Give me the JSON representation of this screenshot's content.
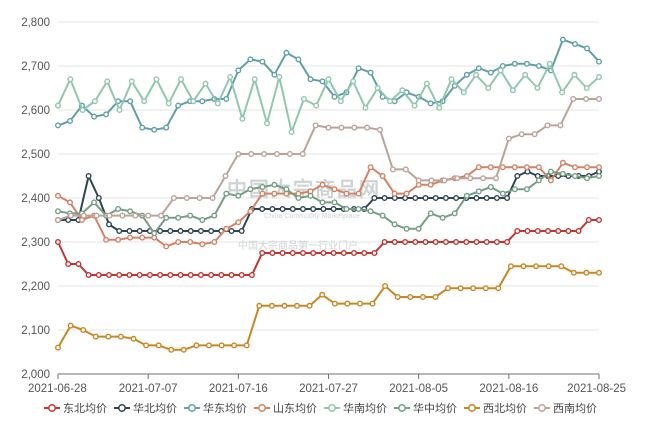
{
  "watermark": {
    "cn": "中国大宗商品网",
    "en": "China Commodity Marketplace",
    "slogan": "中国大宗商品第一行业门户"
  },
  "chart_data": {
    "type": "line",
    "ylim": [
      2000,
      2800
    ],
    "yticks": [
      2000,
      2100,
      2200,
      2300,
      2400,
      2500,
      2600,
      2700,
      2800
    ],
    "ytick_labels": [
      "2,000",
      "2,100",
      "2,200",
      "2,300",
      "2,400",
      "2,500",
      "2,600",
      "2,700",
      "2,800"
    ],
    "x_range": [
      "2021-06-28",
      "2021-08-26"
    ],
    "xtick_labels": [
      "2021-06-28",
      "2021-07-07",
      "2021-07-16",
      "2021-07-27",
      "2021-08-05",
      "2021-08-16",
      "2021-08-25"
    ],
    "grid": "horizontal",
    "legend_position": "bottom",
    "series": [
      {
        "name": "东北均价",
        "color": "#c23531",
        "values": [
          2300,
          2250,
          2250,
          2225,
          2225,
          2225,
          2225,
          2225,
          2225,
          2225,
          2225,
          2225,
          2225,
          2225,
          2225,
          2225,
          2225,
          2225,
          2225,
          2225,
          2275,
          2275,
          2275,
          2275,
          2275,
          2275,
          2275,
          2275,
          2275,
          2275,
          2275,
          2275,
          2300,
          2300,
          2300,
          2300,
          2300,
          2300,
          2300,
          2300,
          2300,
          2300,
          2300,
          2300,
          2300,
          2325,
          2325,
          2325,
          2325,
          2325,
          2325,
          2325,
          2350,
          2350
        ]
      },
      {
        "name": "华北均价",
        "color": "#2f4554",
        "values": [
          2350,
          2350,
          2350,
          2450,
          2400,
          2340,
          2325,
          2325,
          2325,
          2325,
          2325,
          2325,
          2325,
          2325,
          2325,
          2325,
          2325,
          2325,
          2325,
          2375,
          2375,
          2375,
          2375,
          2375,
          2375,
          2375,
          2375,
          2375,
          2375,
          2375,
          2375,
          2400,
          2400,
          2400,
          2400,
          2400,
          2400,
          2400,
          2400,
          2400,
          2400,
          2400,
          2400,
          2400,
          2400,
          2450,
          2460,
          2450,
          2450,
          2450,
          2450,
          2450,
          2450,
          2460
        ]
      },
      {
        "name": "华东均价",
        "color": "#61a0a8",
        "values": [
          2565,
          2575,
          2610,
          2585,
          2590,
          2620,
          2620,
          2560,
          2555,
          2560,
          2610,
          2620,
          2620,
          2625,
          2625,
          2690,
          2715,
          2710,
          2680,
          2730,
          2715,
          2670,
          2665,
          2630,
          2640,
          2695,
          2685,
          2630,
          2620,
          2640,
          2630,
          2615,
          2620,
          2655,
          2680,
          2695,
          2685,
          2700,
          2705,
          2705,
          2700,
          2690,
          2760,
          2750,
          2740,
          2710
        ]
      },
      {
        "name": "山东均价",
        "color": "#d48265",
        "values": [
          2405,
          2390,
          2350,
          2360,
          2305,
          2305,
          2310,
          2310,
          2310,
          2290,
          2300,
          2300,
          2295,
          2300,
          2330,
          2345,
          2370,
          2410,
          2410,
          2410,
          2410,
          2415,
          2430,
          2420,
          2410,
          2410,
          2470,
          2450,
          2410,
          2410,
          2430,
          2430,
          2440,
          2445,
          2450,
          2470,
          2470,
          2470,
          2470,
          2470,
          2470,
          2440,
          2480,
          2470,
          2470,
          2470
        ]
      },
      {
        "name": "华南均价",
        "color": "#91c7ae",
        "values": [
          2610,
          2670,
          2600,
          2620,
          2665,
          2600,
          2665,
          2620,
          2670,
          2615,
          2670,
          2620,
          2660,
          2615,
          2675,
          2580,
          2670,
          2570,
          2675,
          2550,
          2625,
          2610,
          2670,
          2620,
          2665,
          2605,
          2650,
          2620,
          2645,
          2610,
          2660,
          2605,
          2670,
          2640,
          2680,
          2650,
          2690,
          2645,
          2680,
          2650,
          2705,
          2640,
          2680,
          2650,
          2675
        ]
      },
      {
        "name": "华中均价",
        "color": "#749f83",
        "values": [
          2370,
          2365,
          2365,
          2390,
          2360,
          2375,
          2370,
          2360,
          2320,
          2355,
          2355,
          2360,
          2350,
          2360,
          2410,
          2405,
          2420,
          2425,
          2430,
          2420,
          2400,
          2405,
          2390,
          2390,
          2375,
          2375,
          2370,
          2360,
          2340,
          2330,
          2330,
          2365,
          2355,
          2365,
          2405,
          2415,
          2425,
          2410,
          2420,
          2420,
          2440,
          2460,
          2455,
          2450,
          2445,
          2450
        ]
      },
      {
        "name": "西北均价",
        "color": "#ca8622",
        "values": [
          2060,
          2110,
          2100,
          2085,
          2085,
          2085,
          2080,
          2065,
          2065,
          2055,
          2055,
          2065,
          2065,
          2065,
          2065,
          2065,
          2155,
          2155,
          2155,
          2155,
          2155,
          2180,
          2160,
          2160,
          2160,
          2160,
          2200,
          2175,
          2175,
          2175,
          2175,
          2195,
          2195,
          2195,
          2195,
          2195,
          2245,
          2245,
          2245,
          2245,
          2245,
          2230,
          2230,
          2230
        ]
      },
      {
        "name": "西南均价",
        "color": "#bda29a",
        "values": [
          2350,
          2360,
          2360,
          2360,
          2360,
          2360,
          2360,
          2360,
          2360,
          2400,
          2400,
          2400,
          2400,
          2450,
          2500,
          2500,
          2500,
          2500,
          2500,
          2500,
          2565,
          2560,
          2560,
          2560,
          2560,
          2555,
          2465,
          2465,
          2440,
          2440,
          2440,
          2445,
          2445,
          2445,
          2445,
          2535,
          2545,
          2545,
          2565,
          2565,
          2625,
          2625,
          2625
        ]
      }
    ]
  }
}
